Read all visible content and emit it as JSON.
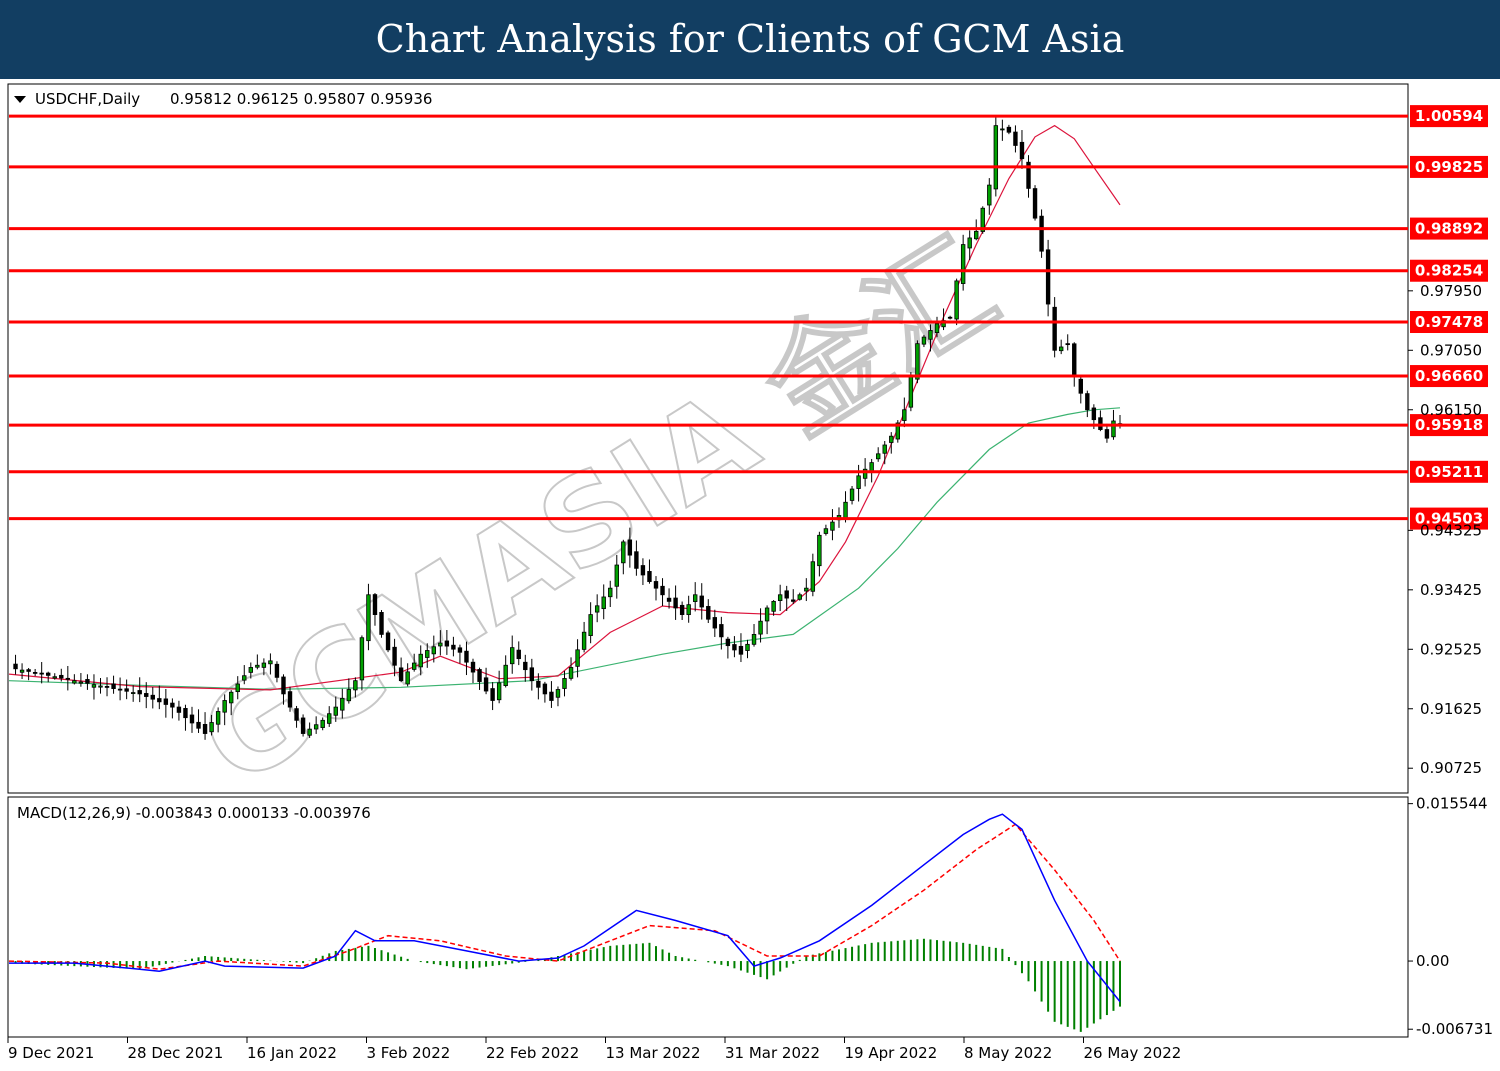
{
  "banner": {
    "title": "Chart Analysis for Clients of GCM Asia"
  },
  "chart_data": [
    {
      "type": "candlestick",
      "symbol_header": "USDCHF,Daily",
      "ohlc_header": "0.95812 0.96125 0.95807 0.95936",
      "last": {
        "open": 0.95812,
        "high": 0.96125,
        "low": 0.95807,
        "close": 0.95936
      },
      "ylim": [
        0.9035,
        1.0108
      ],
      "y_ticks": [
        "0.97950",
        "0.97050",
        "0.96150",
        "0.94325",
        "0.93425",
        "0.92525",
        "0.91625",
        "0.90725"
      ],
      "x_ticks": [
        "9 Dec 2021",
        "28 Dec 2021",
        "16 Jan 2022",
        "3 Feb 2022",
        "22 Feb 2022",
        "13 Mar 2022",
        "31 Mar 2022",
        "19 Apr 2022",
        "8 May 2022",
        "26 May 2022"
      ],
      "horizontal_levels": [
        "1.00594",
        "0.99825",
        "0.98892",
        "0.98254",
        "0.97478",
        "0.96660",
        "0.95918",
        "0.95211",
        "0.94503"
      ],
      "close_path": [
        [
          0,
          0.9225
        ],
        [
          10,
          0.9205
        ],
        [
          20,
          0.9185
        ],
        [
          25,
          0.9165
        ],
        [
          30,
          0.9125
        ],
        [
          33,
          0.9175
        ],
        [
          37,
          0.9225
        ],
        [
          40,
          0.9235
        ],
        [
          42,
          0.9185
        ],
        [
          45,
          0.9125
        ],
        [
          48,
          0.9145
        ],
        [
          50,
          0.9165
        ],
        [
          53,
          0.9205
        ],
        [
          55,
          0.9335
        ],
        [
          57,
          0.9275
        ],
        [
          60,
          0.9205
        ],
        [
          63,
          0.9245
        ],
        [
          66,
          0.9262
        ],
        [
          69,
          0.9248
        ],
        [
          71,
          0.9218
        ],
        [
          74,
          0.9175
        ],
        [
          77,
          0.9255
        ],
        [
          80,
          0.9205
        ],
        [
          83,
          0.9175
        ],
        [
          86,
          0.9225
        ],
        [
          89,
          0.9305
        ],
        [
          92,
          0.9345
        ],
        [
          94,
          0.9415
        ],
        [
          96,
          0.9375
        ],
        [
          98,
          0.9355
        ],
        [
          101,
          0.9325
        ],
        [
          103,
          0.9305
        ],
        [
          105,
          0.9335
        ],
        [
          107,
          0.9298
        ],
        [
          110,
          0.9258
        ],
        [
          112,
          0.9245
        ],
        [
          114,
          0.9275
        ],
        [
          116,
          0.9315
        ],
        [
          118,
          0.9335
        ],
        [
          120,
          0.9325
        ],
        [
          122,
          0.9345
        ],
        [
          124,
          0.9425
        ],
        [
          127,
          0.9455
        ],
        [
          130,
          0.9515
        ],
        [
          132,
          0.9535
        ],
        [
          135,
          0.9575
        ],
        [
          137,
          0.9615
        ],
        [
          139,
          0.9715
        ],
        [
          142,
          0.9745
        ],
        [
          144,
          0.9755
        ],
        [
          146,
          0.9865
        ],
        [
          148,
          0.9885
        ],
        [
          150,
          0.9955
        ],
        [
          151,
          1.0045
        ],
        [
          153,
          1.0035
        ],
        [
          155,
          0.9995
        ],
        [
          157,
          0.9905
        ],
        [
          158,
          0.9855
        ],
        [
          159,
          0.9775
        ],
        [
          160,
          0.9705
        ],
        [
          162,
          0.9715
        ],
        [
          163,
          0.9665
        ],
        [
          165,
          0.9615
        ],
        [
          167,
          0.9585
        ],
        [
          168,
          0.9572
        ],
        [
          169,
          0.9598
        ],
        [
          170,
          0.9594
        ]
      ],
      "ma_fast_path": [
        [
          0,
          0.9215
        ],
        [
          20,
          0.9196
        ],
        [
          40,
          0.9191
        ],
        [
          60,
          0.9218
        ],
        [
          66,
          0.9242
        ],
        [
          75,
          0.9208
        ],
        [
          84,
          0.9212
        ],
        [
          92,
          0.9278
        ],
        [
          100,
          0.9318
        ],
        [
          110,
          0.9308
        ],
        [
          118,
          0.9305
        ],
        [
          124,
          0.9355
        ],
        [
          128,
          0.9415
        ],
        [
          133,
          0.9515
        ],
        [
          138,
          0.9635
        ],
        [
          143,
          0.9755
        ],
        [
          148,
          0.9865
        ],
        [
          153,
          0.9965
        ],
        [
          157,
          1.0028
        ],
        [
          160,
          1.0045
        ],
        [
          163,
          1.0025
        ],
        [
          166,
          0.9982
        ],
        [
          170,
          0.9925
        ]
      ],
      "ma_slow_path": [
        [
          0,
          0.9205
        ],
        [
          20,
          0.9198
        ],
        [
          40,
          0.9192
        ],
        [
          60,
          0.9195
        ],
        [
          80,
          0.9205
        ],
        [
          100,
          0.9245
        ],
        [
          110,
          0.9262
        ],
        [
          120,
          0.9275
        ],
        [
          130,
          0.9345
        ],
        [
          136,
          0.9405
        ],
        [
          142,
          0.9475
        ],
        [
          150,
          0.9555
        ],
        [
          156,
          0.9595
        ],
        [
          162,
          0.9608
        ],
        [
          166,
          0.9615
        ],
        [
          170,
          0.9618
        ]
      ]
    },
    {
      "type": "macd",
      "header": "MACD(12,26,9) -0.003843 0.000133 -0.003976",
      "ylim": [
        -0.0075,
        0.0162
      ],
      "y_ticks": [
        "0.015544",
        "0.00",
        "-0.006731"
      ],
      "macd_path": [
        [
          0,
          -0.0002
        ],
        [
          10,
          -0.0002
        ],
        [
          20,
          -0.0008
        ],
        [
          23,
          -0.001
        ],
        [
          30,
          0.0
        ],
        [
          33,
          -0.0005
        ],
        [
          45,
          -0.0007
        ],
        [
          50,
          0.0005
        ],
        [
          53,
          0.003
        ],
        [
          56,
          0.002
        ],
        [
          62,
          0.002
        ],
        [
          70,
          0.001
        ],
        [
          78,
          0.0
        ],
        [
          84,
          0.0003
        ],
        [
          88,
          0.0015
        ],
        [
          96,
          0.005
        ],
        [
          102,
          0.004
        ],
        [
          110,
          0.0025
        ],
        [
          114,
          -0.0005
        ],
        [
          118,
          0.0003
        ],
        [
          124,
          0.002
        ],
        [
          132,
          0.0055
        ],
        [
          140,
          0.0095
        ],
        [
          146,
          0.0125
        ],
        [
          150,
          0.014
        ],
        [
          152,
          0.0145
        ],
        [
          155,
          0.013
        ],
        [
          160,
          0.006
        ],
        [
          165,
          0.0
        ],
        [
          170,
          -0.004
        ]
      ],
      "signal_path": [
        [
          0,
          0.0
        ],
        [
          15,
          -0.0002
        ],
        [
          23,
          -0.0008
        ],
        [
          32,
          0.0
        ],
        [
          45,
          -0.0005
        ],
        [
          52,
          0.001
        ],
        [
          58,
          0.0025
        ],
        [
          66,
          0.002
        ],
        [
          76,
          0.0005
        ],
        [
          84,
          0.0
        ],
        [
          92,
          0.002
        ],
        [
          98,
          0.0035
        ],
        [
          108,
          0.003
        ],
        [
          116,
          0.0005
        ],
        [
          124,
          0.0005
        ],
        [
          132,
          0.0035
        ],
        [
          140,
          0.007
        ],
        [
          148,
          0.011
        ],
        [
          154,
          0.0135
        ],
        [
          160,
          0.009
        ],
        [
          166,
          0.004
        ],
        [
          170,
          0.0
        ]
      ],
      "histogram_path": [
        [
          0,
          -0.0002
        ],
        [
          20,
          -0.0008
        ],
        [
          30,
          0.0005
        ],
        [
          45,
          -0.0002
        ],
        [
          50,
          0.001
        ],
        [
          55,
          0.0015
        ],
        [
          62,
          0.0
        ],
        [
          70,
          -0.0008
        ],
        [
          80,
          0.0
        ],
        [
          92,
          0.0015
        ],
        [
          98,
          0.0018
        ],
        [
          102,
          0.0005
        ],
        [
          110,
          -0.0005
        ],
        [
          116,
          -0.0018
        ],
        [
          122,
          0.0005
        ],
        [
          132,
          0.0018
        ],
        [
          140,
          0.0022
        ],
        [
          146,
          0.0018
        ],
        [
          152,
          0.0012
        ],
        [
          156,
          -0.002
        ],
        [
          160,
          -0.006
        ],
        [
          164,
          -0.007
        ],
        [
          170,
          -0.0045
        ]
      ]
    }
  ],
  "watermark": {
    "text": "GCMASIA 金汇"
  }
}
